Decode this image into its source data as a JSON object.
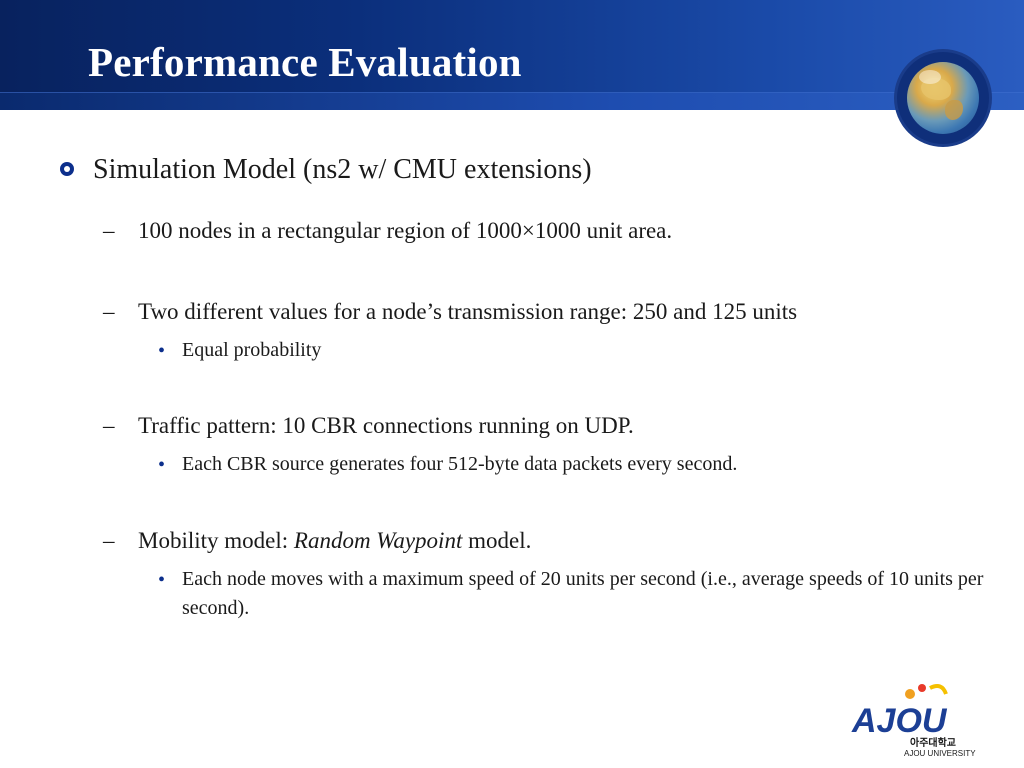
{
  "slide": {
    "title": "Performance Evaluation",
    "bullet": "Simulation Model (ns2 w/ CMU extensions)",
    "items": [
      {
        "text": "100 nodes in a rectangular region of 1000×1000 unit area."
      },
      {
        "text": "Two different values for a node’s transmission range: 250 and 125 units",
        "sub": "Equal probability"
      },
      {
        "text": "Traffic pattern: 10 CBR connections running on UDP.",
        "sub": "Each CBR source generates four 512-byte data packets every second."
      },
      {
        "text_a": "Mobility model:  ",
        "text_italic": "Random Waypoint",
        "text_b": " model.",
        "sub": "Each node moves with a maximum speed of 20 units per second (i.e., average speeds of 10 units per second)."
      }
    ],
    "dash": "–",
    "dot": "•"
  },
  "logo": {
    "mark": "AJOU",
    "korean": "아주대학교",
    "english": "AJOU UNIVERSITY"
  },
  "colors": {
    "header_dark": "#08225e",
    "header_light": "#2a5cc0",
    "bullet": "#0c2f8c"
  },
  "icons": {
    "globe": "globe-icon",
    "bullet": "ring-bullet-icon"
  }
}
